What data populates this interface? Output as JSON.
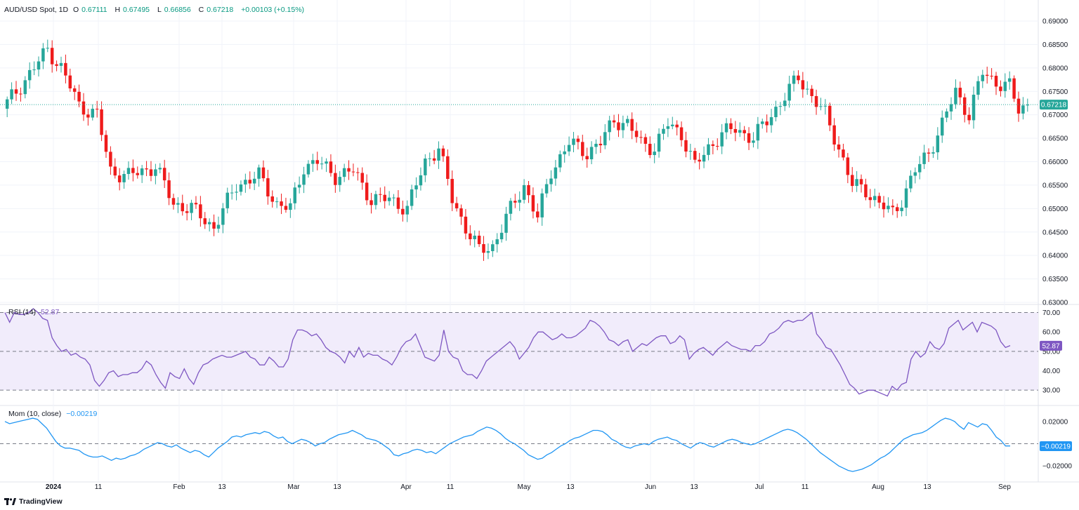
{
  "legend": {
    "symbol": "AUD/USD Spot, 1D",
    "open_label": "O",
    "open": "0.67111",
    "high_label": "H",
    "high": "0.67495",
    "low_label": "L",
    "low": "0.66856",
    "close_label": "C",
    "close": "0.67218",
    "change": "+0.00103 (+0.15%)",
    "rsi_label": "RSI (14)",
    "rsi_value": "52.87",
    "mom_label": "Mom (10, close)",
    "mom_value": "−0.00219"
  },
  "brand": "TradingView",
  "colors": {
    "up": "#26a69a",
    "down": "#ef1b1b",
    "rsi": "#7e57c2",
    "mom": "#2196f3",
    "rsi_band": "#f1ecfb"
  },
  "chart_data": [
    {
      "type": "candlestick",
      "title": "AUD/USD Spot, 1D",
      "ylim": [
        0.63,
        0.69
      ],
      "y_ticks": [
        "0.69000",
        "0.68500",
        "0.68000",
        "0.67500",
        "0.67000",
        "0.66500",
        "0.66000",
        "0.65500",
        "0.65000",
        "0.64500",
        "0.64000",
        "0.63500",
        "0.63000"
      ],
      "x_ticks": [
        "2024",
        "11",
        "Feb",
        "13",
        "Mar",
        "13",
        "Apr",
        "11",
        "May",
        "13",
        "Jun",
        "13",
        "Jul",
        "11",
        "Aug",
        "13",
        "Sep"
      ],
      "last_price": "0.67218",
      "grid": true
    },
    {
      "type": "line",
      "title": "RSI (14)",
      "ylim": [
        25,
        72
      ],
      "y_ticks": [
        "70.00",
        "60.00",
        "50.00",
        "40.00",
        "30.00"
      ],
      "bands": [
        30,
        50,
        70
      ],
      "last_value": "52.87",
      "values": [
        70,
        65,
        70,
        69,
        69,
        70,
        72,
        70,
        67,
        66,
        57,
        53,
        50,
        51,
        48,
        49,
        47,
        46,
        43,
        35,
        32,
        35,
        39,
        40,
        37,
        38,
        38,
        39,
        39,
        41,
        45,
        43,
        38,
        34,
        31,
        39,
        37,
        36,
        41,
        36,
        33,
        39,
        43,
        44,
        46,
        47,
        48,
        47,
        47,
        48,
        49,
        50,
        47,
        46,
        43,
        43,
        47,
        45,
        42,
        42,
        46,
        56,
        61,
        61,
        60,
        58,
        59,
        56,
        52,
        50,
        49,
        47,
        44,
        50,
        47,
        52,
        47,
        49,
        48,
        48,
        46,
        45,
        43,
        47,
        52,
        55,
        56,
        59,
        53,
        47,
        46,
        45,
        48,
        61,
        50,
        47,
        46,
        40,
        38,
        38,
        36,
        40,
        45,
        47,
        49,
        51,
        53,
        55,
        52,
        46,
        49,
        52,
        57,
        60,
        60,
        58,
        56,
        57,
        59,
        57,
        57,
        58,
        60,
        62,
        66,
        65,
        63,
        60,
        56,
        55,
        53,
        55,
        56,
        50,
        52,
        54,
        53,
        55,
        57,
        58,
        58,
        54,
        55,
        58,
        56,
        46,
        49,
        51,
        52,
        50,
        48,
        51,
        53,
        55,
        53,
        52,
        51,
        51,
        50,
        53,
        53,
        55,
        59,
        60,
        62,
        65,
        66,
        65,
        66,
        66,
        68,
        70,
        59,
        56,
        52,
        51,
        47,
        43,
        38,
        33,
        31,
        28,
        29,
        30,
        30,
        29,
        28,
        27,
        32,
        30,
        33,
        34,
        46,
        50,
        47,
        49,
        55,
        52,
        51,
        54,
        62,
        64,
        66,
        61,
        63,
        65,
        60,
        65,
        64,
        63,
        61,
        55,
        52,
        53
      ]
    },
    {
      "type": "line",
      "title": "Mom (10, close)",
      "ylim": [
        -0.03,
        0.03
      ],
      "y_ticks": [
        "0.02000",
        "−0.00219",
        "−0.02000"
      ],
      "zero_line": 0,
      "last_value": "−0.00219",
      "values": [
        0.02,
        0.018,
        0.019,
        0.02,
        0.021,
        0.022,
        0.023,
        0.022,
        0.018,
        0.014,
        0.008,
        0.002,
        -0.002,
        -0.004,
        -0.004,
        -0.005,
        -0.006,
        -0.009,
        -0.011,
        -0.012,
        -0.012,
        -0.011,
        -0.013,
        -0.015,
        -0.013,
        -0.014,
        -0.013,
        -0.011,
        -0.01,
        -0.008,
        -0.005,
        -0.003,
        -0.001,
        0.001,
        0.0,
        -0.002,
        -0.003,
        -0.001,
        -0.004,
        -0.006,
        -0.008,
        -0.006,
        -0.007,
        -0.01,
        -0.012,
        -0.008,
        -0.004,
        -0.001,
        0.002,
        0.006,
        0.007,
        0.006,
        0.008,
        0.009,
        0.01,
        0.009,
        0.011,
        0.01,
        0.007,
        0.005,
        0.006,
        0.002,
        0.0,
        0.002,
        0.004,
        0.003,
        0.001,
        -0.002,
        0.0,
        0.001,
        0.004,
        0.006,
        0.008,
        0.009,
        0.01,
        0.012,
        0.01,
        0.008,
        0.005,
        0.004,
        0.003,
        0.001,
        -0.002,
        -0.005,
        -0.01,
        -0.011,
        -0.009,
        -0.008,
        -0.006,
        -0.005,
        -0.006,
        -0.008,
        -0.007,
        -0.009,
        -0.006,
        -0.003,
        0.0,
        0.002,
        0.004,
        0.006,
        0.007,
        0.008,
        0.011,
        0.013,
        0.015,
        0.014,
        0.012,
        0.009,
        0.005,
        0.002,
        0.0,
        -0.003,
        -0.006,
        -0.01,
        -0.012,
        -0.014,
        -0.013,
        -0.01,
        -0.008,
        -0.005,
        -0.002,
        0.0,
        0.003,
        0.005,
        0.006,
        0.008,
        0.01,
        0.012,
        0.012,
        0.011,
        0.008,
        0.004,
        0.002,
        -0.001,
        -0.003,
        -0.004,
        -0.002,
        -0.001,
        0.0,
        -0.001,
        0.002,
        0.004,
        0.005,
        0.006,
        0.004,
        0.003,
        0.0,
        -0.002,
        -0.004,
        -0.001,
        0.001,
        0.0,
        -0.002,
        -0.003,
        -0.001,
        0.001,
        0.003,
        0.004,
        0.003,
        0.001,
        0.0,
        -0.001,
        0.0,
        0.002,
        0.004,
        0.006,
        0.008,
        0.01,
        0.012,
        0.013,
        0.012,
        0.01,
        0.007,
        0.004,
        0.0,
        -0.004,
        -0.008,
        -0.011,
        -0.014,
        -0.017,
        -0.02,
        -0.022,
        -0.024,
        -0.025,
        -0.024,
        -0.023,
        -0.021,
        -0.019,
        -0.016,
        -0.013,
        -0.011,
        -0.008,
        -0.004,
        0.0,
        0.004,
        0.006,
        0.008,
        0.009,
        0.01,
        0.012,
        0.015,
        0.018,
        0.021,
        0.023,
        0.022,
        0.02,
        0.016,
        0.013,
        0.019,
        0.017,
        0.015,
        0.018,
        0.017,
        0.012,
        0.006,
        0.003,
        -0.002,
        -0.002
      ]
    }
  ]
}
